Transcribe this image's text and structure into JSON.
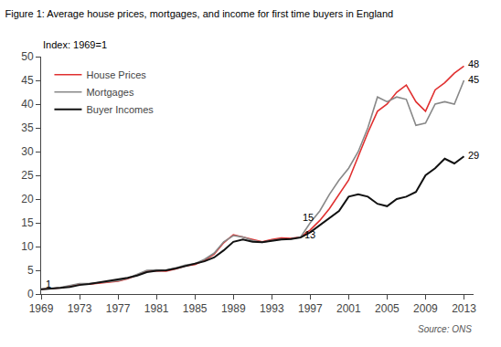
{
  "chart_data": {
    "type": "line",
    "title": "Figure 1: Average house prices, mortgages, and income for first time buyers in England",
    "subtitle": "Index: 1969=1",
    "source": "Source: ONS",
    "x": [
      1969,
      1970,
      1971,
      1972,
      1973,
      1974,
      1975,
      1976,
      1977,
      1978,
      1979,
      1980,
      1981,
      1982,
      1983,
      1984,
      1985,
      1986,
      1987,
      1988,
      1989,
      1990,
      1991,
      1992,
      1993,
      1994,
      1995,
      1996,
      1997,
      1998,
      1999,
      2000,
      2001,
      2002,
      2003,
      2004,
      2005,
      2006,
      2007,
      2008,
      2009,
      2010,
      2011,
      2012,
      2013
    ],
    "series": [
      {
        "name": "House Prices",
        "color": "#e03030",
        "values": [
          1.0,
          1.1,
          1.3,
          1.7,
          2.1,
          2.1,
          2.3,
          2.5,
          2.7,
          3.2,
          4.0,
          4.8,
          4.9,
          4.8,
          5.3,
          5.9,
          6.2,
          7.1,
          8.4,
          10.8,
          12.5,
          12.0,
          11.4,
          11.0,
          11.5,
          11.8,
          11.7,
          12.0,
          13.5,
          15.5,
          18.0,
          21.0,
          24.0,
          29.0,
          34.0,
          38.5,
          40.0,
          42.5,
          44.0,
          40.5,
          38.5,
          43.0,
          44.5,
          46.5,
          48.0
        ]
      },
      {
        "name": "Mortgages",
        "color": "#888888",
        "values": [
          1.0,
          1.1,
          1.4,
          1.8,
          2.2,
          2.2,
          2.4,
          2.6,
          2.8,
          3.3,
          4.1,
          5.0,
          5.1,
          5.0,
          5.5,
          6.1,
          6.4,
          7.3,
          8.6,
          11.0,
          12.3,
          12.0,
          11.3,
          10.9,
          11.3,
          11.6,
          11.6,
          12.0,
          15.0,
          17.5,
          21.0,
          24.0,
          26.5,
          30.0,
          35.0,
          41.5,
          40.5,
          41.5,
          41.0,
          35.5,
          36.0,
          40.0,
          40.5,
          40.0,
          45.0
        ]
      },
      {
        "name": "Buyer Incomes",
        "color": "#111111",
        "values": [
          1.0,
          1.1,
          1.3,
          1.5,
          1.9,
          2.1,
          2.4,
          2.7,
          3.0,
          3.4,
          3.9,
          4.6,
          4.9,
          5.0,
          5.4,
          5.9,
          6.3,
          6.9,
          7.7,
          9.2,
          11.0,
          11.5,
          11.0,
          10.9,
          11.2,
          11.5,
          11.6,
          11.9,
          13.0,
          14.5,
          16.0,
          17.5,
          20.5,
          21.0,
          20.5,
          19.0,
          18.5,
          20.0,
          20.5,
          21.5,
          25.0,
          26.5,
          28.5,
          27.5,
          29.0
        ]
      }
    ],
    "xlim": [
      1969,
      2014
    ],
    "xticks": [
      1969,
      1973,
      1977,
      1981,
      1985,
      1989,
      1993,
      1997,
      2001,
      2005,
      2009,
      2013
    ],
    "ylim": [
      0,
      50
    ],
    "yticks": [
      0,
      5,
      10,
      15,
      20,
      25,
      30,
      35,
      40,
      45,
      50
    ],
    "grid": false,
    "legend": "upper left",
    "annotations": [
      {
        "x": 1969.3,
        "y": 2.2,
        "text": "1"
      },
      {
        "x": 1996.0,
        "y": 16.2,
        "text": "15"
      },
      {
        "x": 1996.2,
        "y": 12.5,
        "text": "13"
      },
      {
        "x": 2013.2,
        "y": 48.5,
        "text": "48"
      },
      {
        "x": 2013.2,
        "y": 45.2,
        "text": "45"
      },
      {
        "x": 2013.2,
        "y": 29.3,
        "text": "29"
      }
    ]
  }
}
